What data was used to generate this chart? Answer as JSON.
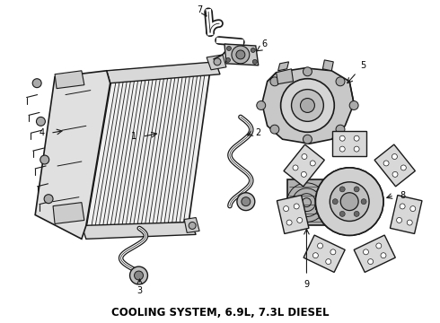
{
  "title": "COOLING SYSTEM, 6.9L, 7.3L DIESEL",
  "title_fontsize": 8.5,
  "title_fontweight": "bold",
  "background_color": "#ffffff",
  "line_color": "#1a1a1a",
  "label_color": "#000000",
  "fig_width": 4.9,
  "fig_height": 3.6,
  "dpi": 100
}
